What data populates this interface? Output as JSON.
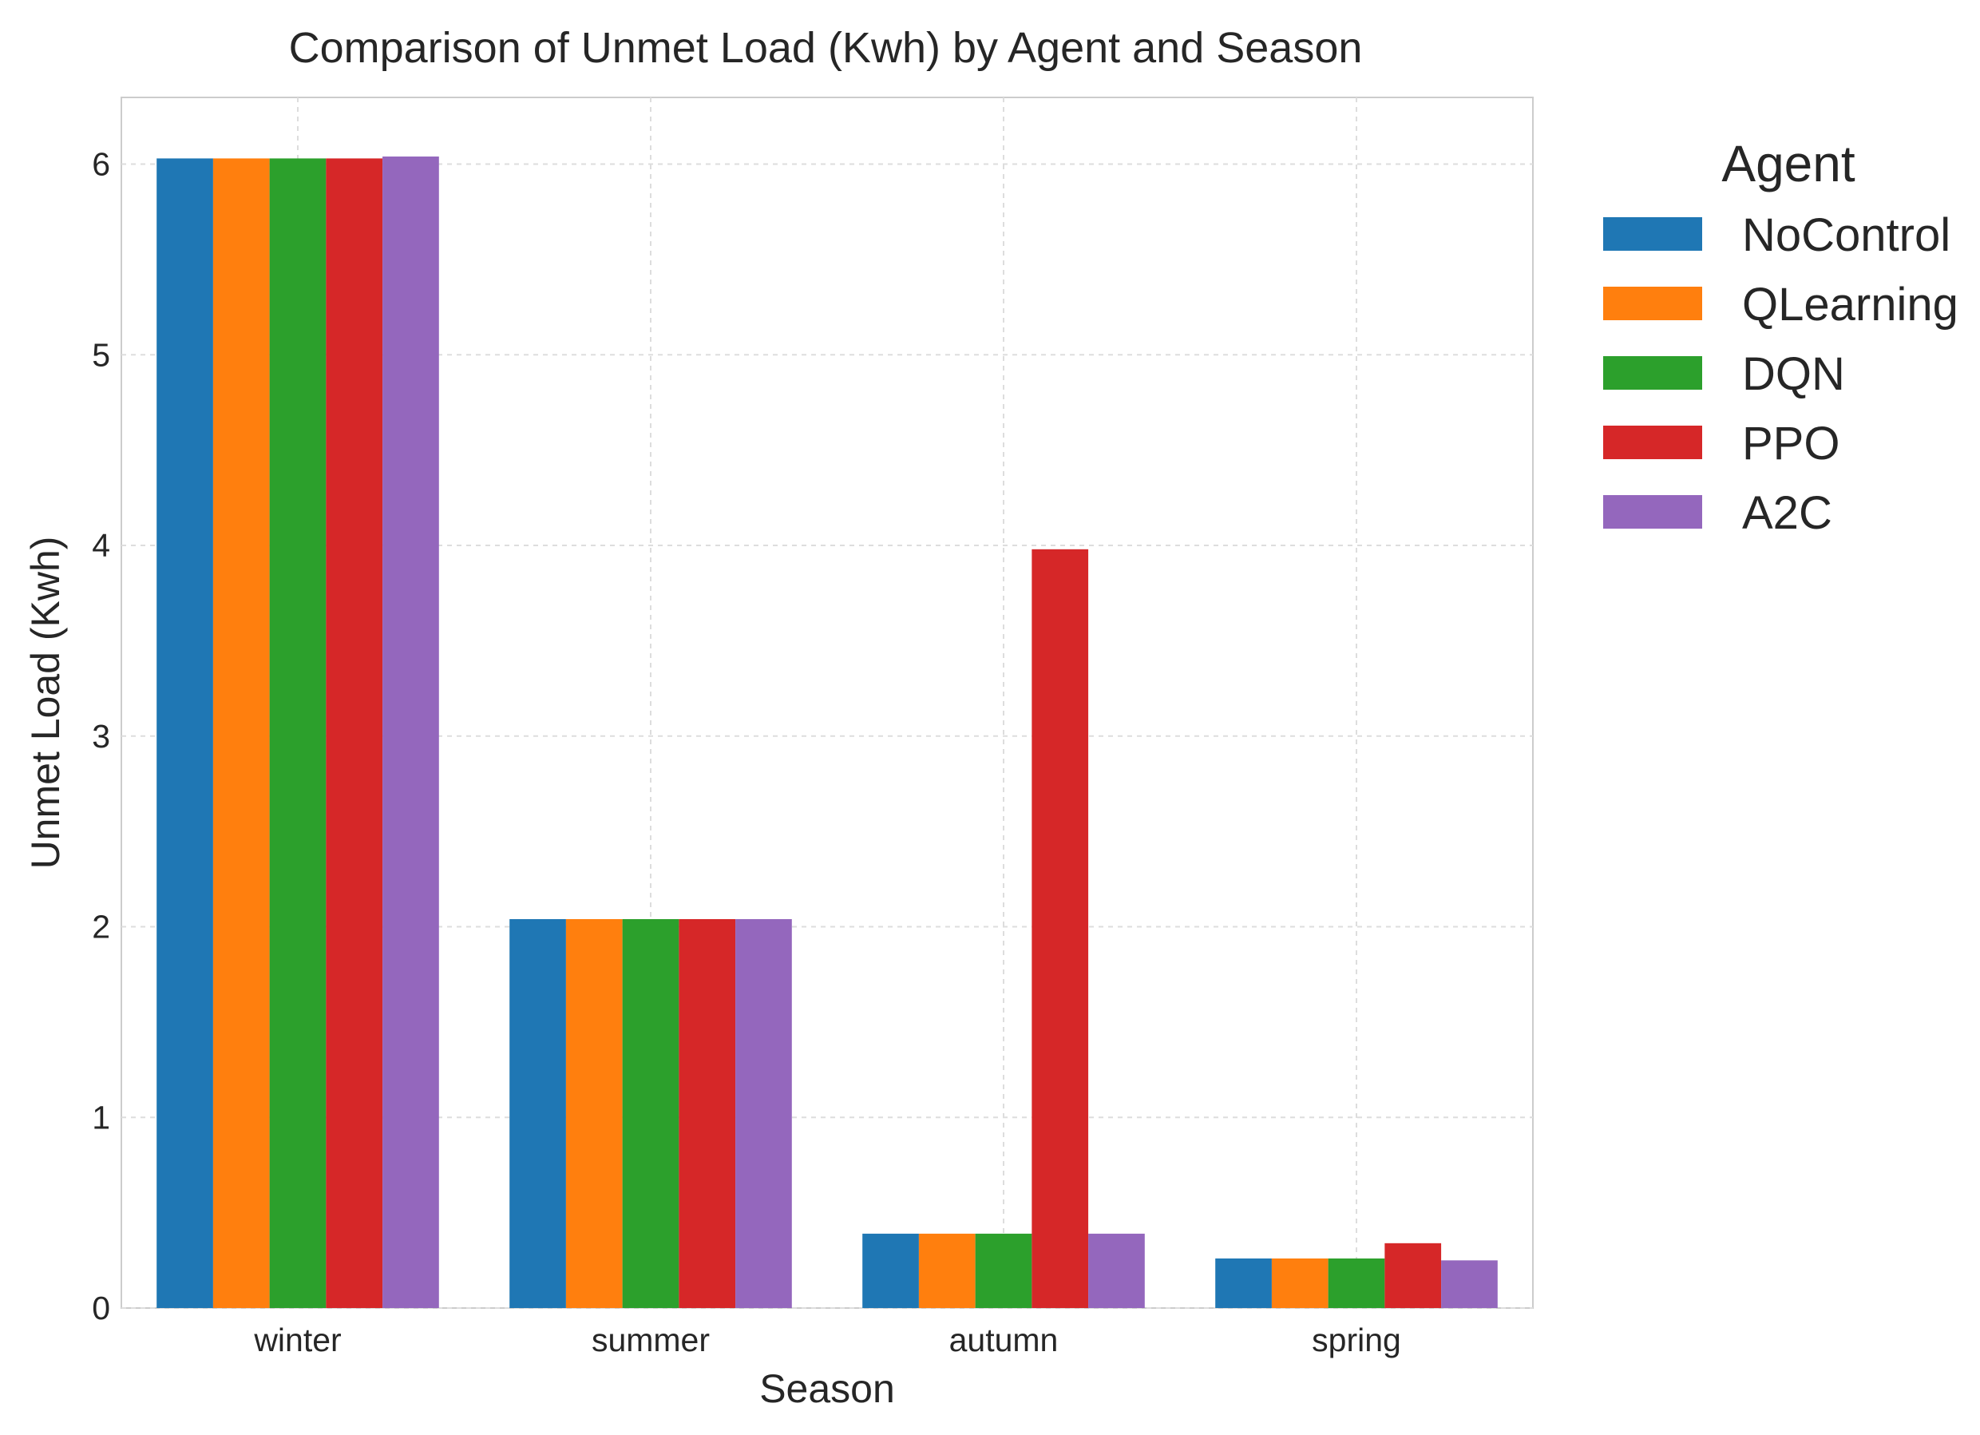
{
  "chart_data": {
    "type": "bar",
    "title": "Comparison of Unmet Load (Kwh) by Agent and Season",
    "xlabel": "Season",
    "ylabel": "Unmet Load (Kwh)",
    "categories": [
      "winter",
      "summer",
      "autumn",
      "spring"
    ],
    "ylim": [
      0,
      6.35
    ],
    "yticks": [
      0,
      1,
      2,
      3,
      4,
      5,
      6
    ],
    "grid": true,
    "legend_title": "Agent",
    "legend_position": "outside-right",
    "series": [
      {
        "name": "NoControl",
        "color": "#1f77b4",
        "values": [
          6.03,
          2.04,
          0.39,
          0.26
        ]
      },
      {
        "name": "QLearning",
        "color": "#ff7f0e",
        "values": [
          6.03,
          2.04,
          0.39,
          0.26
        ]
      },
      {
        "name": "DQN",
        "color": "#2ca02c",
        "values": [
          6.03,
          2.04,
          0.39,
          0.26
        ]
      },
      {
        "name": "PPO",
        "color": "#d62728",
        "values": [
          6.03,
          2.04,
          3.98,
          0.34
        ]
      },
      {
        "name": "A2C",
        "color": "#9467bd",
        "values": [
          6.04,
          2.04,
          0.39,
          0.25
        ]
      }
    ]
  }
}
